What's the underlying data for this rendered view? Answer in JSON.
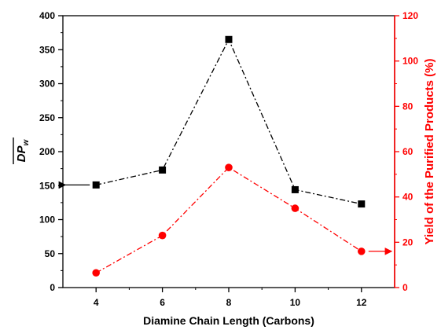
{
  "chart_data": {
    "type": "line",
    "x_axis": {
      "label": "Diamine Chain Length (Carbons)",
      "range": [
        3,
        13
      ],
      "ticks": [
        4,
        6,
        8,
        10,
        12
      ],
      "tick_labels": [
        "4",
        "6",
        "8",
        "10",
        "12"
      ]
    },
    "y_left": {
      "label_main": "DP",
      "label_sub": "w",
      "label_overline": true,
      "range": [
        0,
        400
      ],
      "ticks": [
        0,
        50,
        100,
        150,
        200,
        250,
        300,
        350,
        400
      ],
      "tick_labels": [
        "0",
        "50",
        "100",
        "150",
        "200",
        "250",
        "300",
        "350",
        "400"
      ],
      "color": "#000000"
    },
    "y_right": {
      "label": "Yield of the Purified Products (%)",
      "range": [
        0,
        120
      ],
      "ticks": [
        0,
        20,
        40,
        60,
        80,
        100,
        120
      ],
      "tick_labels": [
        "0",
        "20",
        "40",
        "60",
        "80",
        "100",
        "120"
      ],
      "color": "#ff0000"
    },
    "series": [
      {
        "axis": "left",
        "marker": "square",
        "line_style": "dash-dot",
        "color": "#000000",
        "x": [
          4,
          6,
          8,
          10,
          12
        ],
        "values": [
          151,
          173,
          365,
          144,
          123
        ]
      },
      {
        "axis": "right",
        "marker": "circle",
        "line_style": "dash-dot",
        "color": "#ff0000",
        "x": [
          4,
          6,
          8,
          10,
          12
        ],
        "values": [
          6.5,
          23,
          53,
          35,
          16
        ]
      }
    ],
    "annotations": [
      {
        "type": "arrow",
        "series": 0,
        "direction": "left",
        "points_to": "left-axis"
      },
      {
        "type": "arrow",
        "series": 1,
        "direction": "right",
        "points_to": "right-axis"
      }
    ],
    "grid": false,
    "legend": "none"
  }
}
